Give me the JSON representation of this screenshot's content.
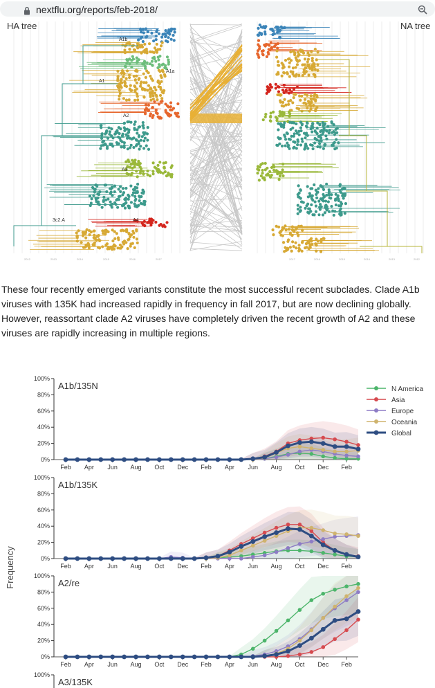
{
  "browser": {
    "url": "nextflu.org/reports/feb-2018/",
    "lock_icon": "lock-icon",
    "zoom_icon": "zoom-out-icon"
  },
  "tree_figure": {
    "ha_title": "HA tree",
    "na_title": "NA tree",
    "clades": [
      "A1b",
      "A1a",
      "A1",
      "A2",
      "A3",
      "3c2.A",
      "A4"
    ],
    "year_ticks": [
      "2012",
      "2013",
      "2014",
      "2015",
      "2016",
      "2017"
    ],
    "colors": {
      "blue": "#3b84b8",
      "teal": "#3d9a8c",
      "olive": "#9ab83a",
      "gold": "#d7a935",
      "orange": "#e6662d",
      "red": "#d4251d",
      "green": "#6dbd7b"
    }
  },
  "paragraph": "These four recently emerged variants constitute the most successful recent subclades. Clade A1b viruses with 135K had increased rapidly in frequency in fall 2017, but are now declining globally. However, reassortant clade A2 viruses have completely driven the recent growth of A2 and these viruses are rapidly increasing in multiple regions.",
  "chart_data": {
    "type": "line",
    "ylabel": "Frequency",
    "x": [
      "Feb",
      "Mar",
      "Apr",
      "May",
      "Jun",
      "Jul",
      "Aug",
      "Sep",
      "Oct",
      "Nov",
      "Dec",
      "Jan",
      "Feb",
      "Mar",
      "Apr",
      "May",
      "Jun",
      "Jul",
      "Aug",
      "Sep",
      "Oct",
      "Nov",
      "Dec",
      "Jan",
      "Feb",
      "Mar"
    ],
    "tick_labels": [
      "Feb",
      "Apr",
      "Jun",
      "Aug",
      "Oct",
      "Dec",
      "Feb",
      "Apr",
      "Jun",
      "Aug",
      "Oct",
      "Dec",
      "Feb"
    ],
    "y_ticks": [
      "0%",
      "20%",
      "40%",
      "60%",
      "80%",
      "100%"
    ],
    "ylim": [
      0,
      1
    ],
    "legend_position": "top-right",
    "legend": [
      {
        "name": "N America",
        "color": "#4db56b"
      },
      {
        "name": "Asia",
        "color": "#d64a4f"
      },
      {
        "name": "Europe",
        "color": "#8d7cc5"
      },
      {
        "name": "Oceania",
        "color": "#cfb36e"
      },
      {
        "name": "Global",
        "color": "#2e4d82"
      }
    ],
    "panels": [
      {
        "title": "A1b/135N",
        "series": [
          {
            "name": "N America",
            "values": [
              0,
              0,
              0,
              0,
              0,
              0,
              0,
              0,
              0,
              0,
              0,
              0,
              0,
              0,
              0,
              0,
              0,
              0.01,
              0.04,
              0.07,
              0.08,
              0.07,
              0.04,
              0.02,
              0.01,
              0.01
            ]
          },
          {
            "name": "Asia",
            "values": [
              0,
              0,
              0,
              0,
              0,
              0,
              0,
              0,
              0,
              0,
              0,
              0,
              0,
              0,
              0,
              0,
              0.01,
              0.04,
              0.1,
              0.2,
              0.24,
              0.26,
              0.27,
              0.25,
              0.22,
              0.18
            ]
          },
          {
            "name": "Europe",
            "values": [
              0,
              0,
              0,
              0,
              0,
              0,
              0,
              0,
              0,
              0,
              0,
              0,
              0,
              0,
              0,
              0,
              0,
              0.01,
              0.03,
              0.06,
              0.1,
              0.12,
              0.1,
              0.07,
              0.05,
              0.04
            ]
          },
          {
            "name": "Oceania",
            "values": [
              0,
              0,
              0,
              0,
              0,
              0,
              0,
              0,
              0,
              0,
              0,
              0,
              0,
              0,
              0,
              0,
              0,
              0.02,
              0.08,
              0.14,
              0.16,
              0.14,
              0.12,
              0.1,
              0.1,
              0.11
            ]
          },
          {
            "name": "Global",
            "values": [
              0,
              0,
              0,
              0,
              0,
              0,
              0,
              0,
              0,
              0,
              0,
              0,
              0,
              0,
              0,
              0,
              0.01,
              0.03,
              0.09,
              0.17,
              0.21,
              0.22,
              0.2,
              0.16,
              0.16,
              0.13
            ]
          }
        ]
      },
      {
        "title": "A1b/135K",
        "series": [
          {
            "name": "N America",
            "values": [
              0,
              0,
              0,
              0,
              0,
              0,
              0,
              0,
              0,
              0,
              0,
              0,
              0,
              0.01,
              0.02,
              0.03,
              0.05,
              0.07,
              0.09,
              0.1,
              0.1,
              0.09,
              0.07,
              0.05,
              0.03,
              0.02
            ]
          },
          {
            "name": "Asia",
            "values": [
              0,
              0,
              0,
              0,
              0,
              0,
              0,
              0,
              0,
              0,
              0,
              0,
              0.01,
              0.03,
              0.1,
              0.18,
              0.25,
              0.32,
              0.38,
              0.42,
              0.42,
              0.34,
              0.2,
              0.1,
              0.05,
              0.03
            ]
          },
          {
            "name": "Europe",
            "values": [
              0,
              0,
              0,
              0,
              0,
              0,
              0,
              0,
              0,
              0.02,
              0.01,
              0,
              0,
              0,
              0,
              0,
              0.02,
              0.04,
              0.08,
              0.13,
              0.18,
              0.21,
              0.24,
              0.27,
              0.28,
              0.29
            ]
          },
          {
            "name": "Oceania",
            "values": [
              0,
              0,
              0,
              0,
              0,
              0,
              0,
              0,
              0,
              0,
              0,
              0,
              0,
              0.01,
              0.04,
              0.1,
              0.16,
              0.22,
              0.28,
              0.34,
              0.38,
              0.38,
              0.35,
              0.31,
              0.3,
              0.28
            ]
          },
          {
            "name": "Global",
            "values": [
              0,
              0,
              0,
              0,
              0,
              0,
              0,
              0,
              0,
              0,
              0,
              0,
              0.01,
              0.03,
              0.08,
              0.15,
              0.21,
              0.27,
              0.32,
              0.37,
              0.36,
              0.28,
              0.17,
              0.1,
              0.05,
              0.02
            ]
          }
        ]
      },
      {
        "title": "A2/re",
        "series": [
          {
            "name": "N America",
            "values": [
              0,
              0,
              0,
              0,
              0,
              0,
              0,
              0,
              0,
              0,
              0,
              0,
              0,
              0,
              0,
              0.03,
              0.1,
              0.2,
              0.32,
              0.45,
              0.58,
              0.7,
              0.78,
              0.83,
              0.87,
              0.9
            ]
          },
          {
            "name": "Asia",
            "values": [
              0,
              0,
              0,
              0,
              0,
              0,
              0,
              0,
              0,
              0,
              0,
              0,
              0,
              0,
              0,
              0,
              0,
              0,
              0,
              0.01,
              0.03,
              0.06,
              0.12,
              0.22,
              0.33,
              0.46
            ]
          },
          {
            "name": "Europe",
            "values": [
              0,
              0,
              0,
              0,
              0,
              0,
              0,
              0,
              0,
              0,
              0,
              0,
              0,
              0,
              0,
              0,
              0.01,
              0.03,
              0.07,
              0.13,
              0.22,
              0.34,
              0.48,
              0.6,
              0.7,
              0.8
            ]
          },
          {
            "name": "Oceania",
            "values": [
              0,
              0,
              0,
              0,
              0,
              0,
              0,
              0,
              0,
              0,
              0,
              0,
              0,
              0,
              0,
              0,
              0,
              0.01,
              0.04,
              0.1,
              0.2,
              0.33,
              0.48,
              0.62,
              0.75,
              0.85
            ]
          },
          {
            "name": "Global",
            "values": [
              0,
              0,
              0,
              0,
              0,
              0,
              0,
              0,
              0,
              0,
              0,
              0,
              0,
              0,
              0,
              0,
              0,
              0.01,
              0.03,
              0.07,
              0.14,
              0.23,
              0.34,
              0.45,
              0.47,
              0.56
            ]
          }
        ]
      },
      {
        "title": "A3/135K",
        "series": []
      }
    ]
  }
}
